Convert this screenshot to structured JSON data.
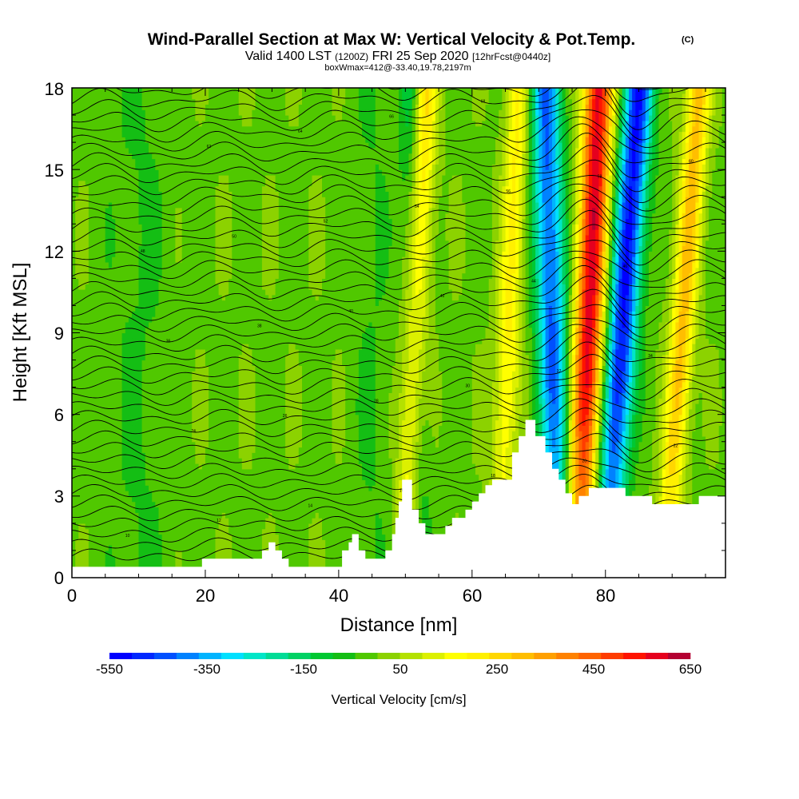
{
  "chart_data": {
    "type": "heatmap",
    "title": "Wind-Parallel Section at Max W: Vertical Velocity & Pot.Temp.",
    "title_mark": "(C)",
    "subtitle_valid": "Valid 1400 LST",
    "subtitle_z": "(1200Z)",
    "subtitle_date": "FRI 25 Sep 2020",
    "subtitle_fcst": "[12hrFcst@0440z]",
    "subtitle_box": "boxWmax=412@-33.40,19.78,2197m",
    "xlabel": "Distance [nm]",
    "ylabel": "Height [Kft MSL]",
    "xlim": [
      0,
      98
    ],
    "ylim": [
      0,
      18
    ],
    "x_ticks": [
      0,
      20,
      40,
      60,
      80
    ],
    "y_ticks": [
      0,
      3,
      6,
      9,
      12,
      15,
      18
    ],
    "grid": false,
    "colorbar": {
      "title": "Vertical Velocity [cm/s]",
      "labels": [
        "-550",
        "-350",
        "-150",
        "50",
        "250",
        "450",
        "650"
      ],
      "min": -550,
      "max": 650,
      "step": 50,
      "colors": [
        "#0000ff",
        "#0028ff",
        "#0050ff",
        "#0082ff",
        "#00b4ff",
        "#00e0ff",
        "#00e6c8",
        "#00dc96",
        "#00d264",
        "#00c832",
        "#14be14",
        "#50c800",
        "#8cd200",
        "#b4e100",
        "#dcf000",
        "#ffff00",
        "#fff000",
        "#ffd700",
        "#ffbe00",
        "#ffa000",
        "#ff8200",
        "#ff6400",
        "#ff3c00",
        "#ff1400",
        "#e6001e",
        "#b40032"
      ]
    },
    "updraft_bands": [
      {
        "x_bottom": 50,
        "x_top": 53,
        "w_peak": 300
      },
      {
        "x_bottom": 64,
        "x_top": 67,
        "w_peak": 220
      },
      {
        "x_bottom": 76,
        "x_top": 79,
        "w_peak": 640
      },
      {
        "x_bottom": 89,
        "x_top": 94,
        "w_peak": 330
      }
    ],
    "downdraft_bands": [
      {
        "x_bottom": 52,
        "x_top": 51,
        "w_peak": -150
      },
      {
        "x_bottom": 73,
        "x_top": 71,
        "w_peak": -450
      },
      {
        "x_bottom": 80,
        "x_top": 85,
        "w_peak": -550
      }
    ],
    "terrain_height_kft": [
      [
        0,
        0.4
      ],
      [
        19.5,
        0.4
      ],
      [
        19.5,
        0.7
      ],
      [
        28.5,
        0.7
      ],
      [
        28.5,
        1.0
      ],
      [
        29.5,
        1.0
      ],
      [
        29.5,
        1.3
      ],
      [
        30.5,
        1.3
      ],
      [
        30.5,
        1.0
      ],
      [
        31.5,
        1.0
      ],
      [
        31.5,
        0.7
      ],
      [
        32.5,
        0.7
      ],
      [
        32.5,
        0.4
      ],
      [
        40,
        0.4
      ],
      [
        40.5,
        0.4
      ],
      [
        40.5,
        1.0
      ],
      [
        41.5,
        1.0
      ],
      [
        41.5,
        1.3
      ],
      [
        42,
        1.3
      ],
      [
        42,
        1.6
      ],
      [
        43,
        1.6
      ],
      [
        43,
        1.0
      ],
      [
        44,
        1.0
      ],
      [
        44,
        0.7
      ],
      [
        47,
        0.7
      ],
      [
        47,
        1.0
      ],
      [
        48,
        1.0
      ],
      [
        48,
        1.6
      ],
      [
        48.5,
        1.6
      ],
      [
        48.5,
        2.2
      ],
      [
        49,
        2.2
      ],
      [
        49,
        2.8
      ],
      [
        49.5,
        2.8
      ],
      [
        49.5,
        3.6
      ],
      [
        51,
        3.6
      ],
      [
        51,
        2.5
      ],
      [
        52,
        2.5
      ],
      [
        52,
        2.0
      ],
      [
        53,
        2.0
      ],
      [
        53,
        1.6
      ],
      [
        56,
        1.6
      ],
      [
        56,
        1.9
      ],
      [
        57,
        1.9
      ],
      [
        57,
        2.2
      ],
      [
        59,
        2.2
      ],
      [
        59,
        2.5
      ],
      [
        60,
        2.5
      ],
      [
        60,
        2.8
      ],
      [
        61,
        2.8
      ],
      [
        61,
        3.1
      ],
      [
        62,
        3.1
      ],
      [
        62,
        3.4
      ],
      [
        63,
        3.4
      ],
      [
        63,
        3.6
      ],
      [
        66,
        3.6
      ],
      [
        66,
        4.6
      ],
      [
        67,
        4.6
      ],
      [
        67,
        5.2
      ],
      [
        68,
        5.2
      ],
      [
        68,
        5.8
      ],
      [
        69.5,
        5.8
      ],
      [
        69.5,
        5.2
      ],
      [
        71,
        5.2
      ],
      [
        71,
        4.6
      ],
      [
        72,
        4.6
      ],
      [
        72,
        4.0
      ],
      [
        73,
        4.0
      ],
      [
        73,
        3.6
      ],
      [
        74,
        3.6
      ],
      [
        74,
        3.1
      ],
      [
        75,
        3.1
      ],
      [
        75,
        2.7
      ],
      [
        76,
        2.7
      ],
      [
        76,
        3.0
      ],
      [
        77.5,
        3.0
      ],
      [
        77.5,
        3.3
      ],
      [
        83,
        3.3
      ],
      [
        83,
        3.0
      ],
      [
        87,
        3.0
      ],
      [
        87,
        2.7
      ],
      [
        94,
        2.7
      ],
      [
        94,
        3.0
      ],
      [
        98,
        3.0
      ]
    ],
    "isentrope_labels": [
      "10",
      "12",
      "14",
      "16",
      "18",
      "20",
      "22",
      "24",
      "26",
      "28",
      "30",
      "32",
      "34",
      "36",
      "38",
      "40",
      "42",
      "44",
      "46",
      "48",
      "50",
      "52",
      "54",
      "56",
      "58",
      "60",
      "62",
      "64",
      "66",
      "68",
      "70"
    ]
  }
}
